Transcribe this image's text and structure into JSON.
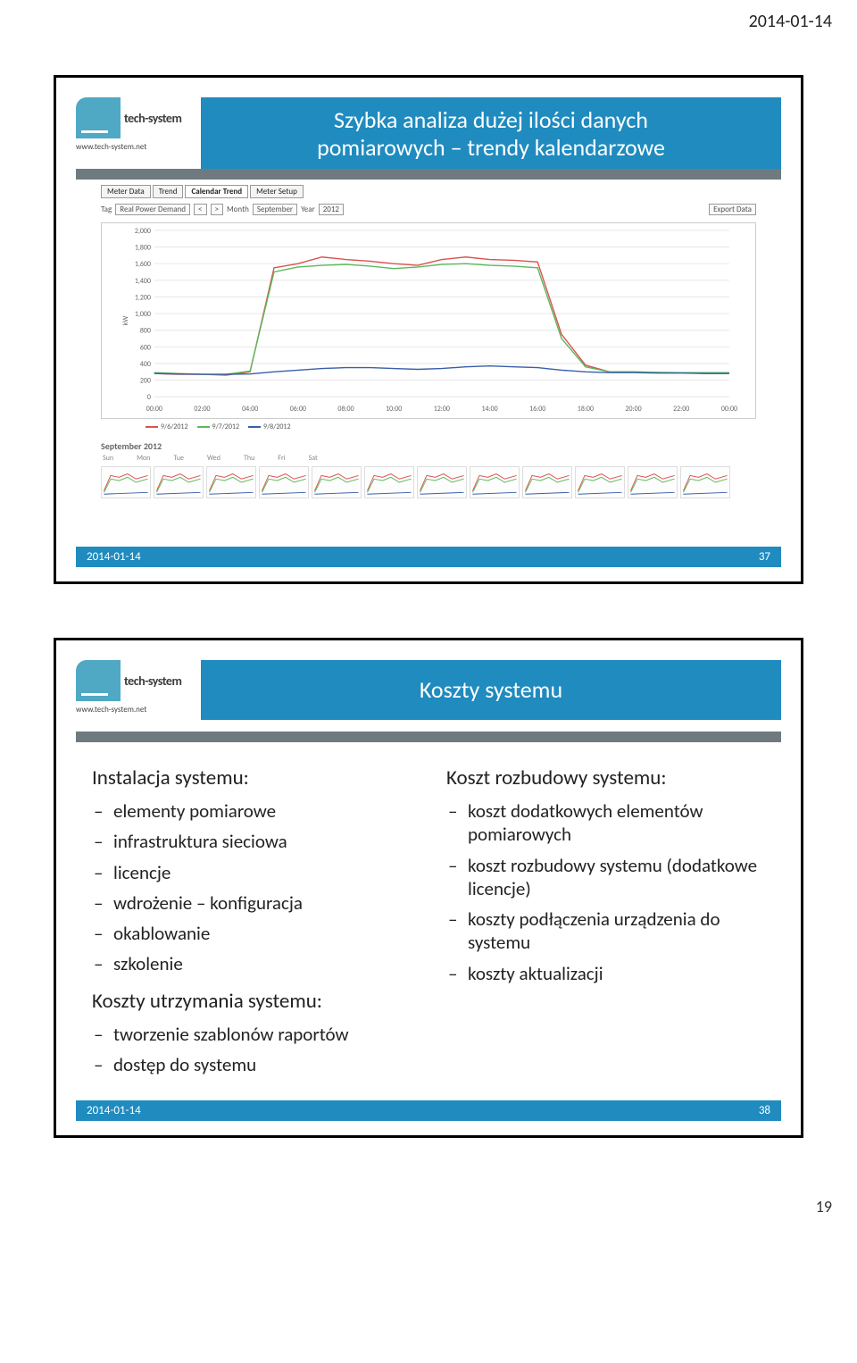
{
  "page_header_date": "2014-01-14",
  "page_number": "19",
  "slide1": {
    "title_line1": "Szybka analiza dużej ilości danych",
    "title_line2": "pomiarowych – trendy kalendarzowe",
    "footer_date": "2014-01-14",
    "footer_page": "37",
    "logo_text": "tech-system",
    "logo_url": "www.tech-system.net",
    "tabs": [
      "Meter Data",
      "Trend",
      "Calendar Trend",
      "Meter Setup"
    ],
    "active_tab_index": 2,
    "controls": {
      "tag_label": "Tag",
      "tag_value": "Real Power Demand",
      "month_label": "Month",
      "month_value": "September",
      "year_label": "Year",
      "year_value": "2012",
      "export_label": "Export Data"
    },
    "chart": {
      "type": "line",
      "ylabel": "kW",
      "ylim": [
        0,
        2000
      ],
      "ytick_step": 200,
      "yticks": [
        0,
        200,
        400,
        600,
        800,
        1000,
        1200,
        1400,
        1600,
        1800,
        2000
      ],
      "xticks": [
        "00:00",
        "02:00",
        "04:00",
        "06:00",
        "08:00",
        "10:00",
        "12:00",
        "14:00",
        "16:00",
        "18:00",
        "20:00",
        "22:00",
        "00:00"
      ],
      "series": [
        {
          "label": "9/6/2012",
          "color": "#d9534f",
          "values": [
            280,
            270,
            270,
            260,
            300,
            1550,
            1600,
            1680,
            1650,
            1630,
            1600,
            1580,
            1650,
            1680,
            1650,
            1640,
            1620,
            750,
            380,
            300,
            300,
            290,
            290,
            280,
            280
          ]
        },
        {
          "label": "9/7/2012",
          "color": "#5cb85c",
          "values": [
            290,
            280,
            270,
            270,
            310,
            1500,
            1560,
            1580,
            1590,
            1570,
            1540,
            1560,
            1590,
            1600,
            1580,
            1570,
            1550,
            700,
            360,
            300,
            300,
            295,
            290,
            290,
            290
          ]
        },
        {
          "label": "9/8/2012",
          "color": "#3a5ea8",
          "values": [
            280,
            275,
            270,
            270,
            275,
            300,
            320,
            340,
            350,
            350,
            340,
            330,
            340,
            360,
            370,
            360,
            350,
            320,
            300,
            290,
            290,
            285,
            285,
            280,
            280
          ]
        }
      ],
      "grid_color": "#e6e6e6",
      "background_color": "#ffffff",
      "label_fontsize": 8
    },
    "calendar_label": "September 2012",
    "day_names": [
      "Sun",
      "Mon",
      "Tue",
      "Wed",
      "Thu",
      "Fri",
      "Sat"
    ]
  },
  "slide2": {
    "title": "Koszty systemu",
    "footer_date": "2014-01-14",
    "footer_page": "38",
    "logo_text": "tech-system",
    "logo_url": "www.tech-system.net",
    "left": {
      "h1": "Instalacja systemu:",
      "items1": [
        "elementy pomiarowe",
        "infrastruktura sieciowa",
        "licencje",
        "wdrożenie – konfiguracja",
        "okablowanie",
        "szkolenie"
      ],
      "h2": "Koszty utrzymania systemu:",
      "items2": [
        "tworzenie szablonów raportów",
        "dostęp do systemu"
      ]
    },
    "right": {
      "h1": "Koszt rozbudowy systemu:",
      "items": [
        "koszt dodatkowych elementów pomiarowych",
        "koszt rozbudowy systemu (dodatkowe licencje)",
        "koszty podłączenia urządzenia do systemu",
        "koszty aktualizacji"
      ]
    }
  }
}
